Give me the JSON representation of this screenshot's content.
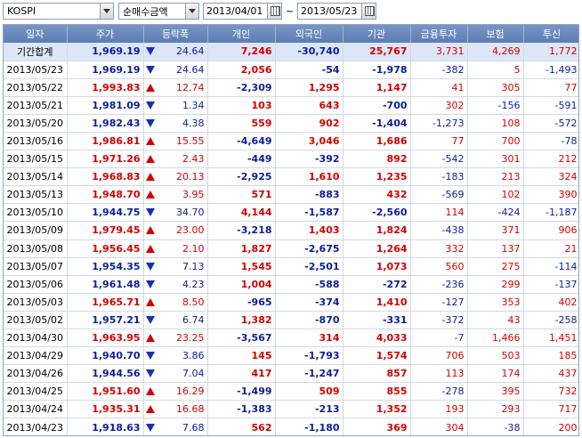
{
  "toolbar": {
    "market": "KOSPI",
    "metric": "순매수금액",
    "date_from": "2013/04/01",
    "date_sep": "~",
    "date_to": "2013/05/23"
  },
  "colors": {
    "up": "#d20000",
    "down": "#0a1e9a",
    "header": "#6a89bc"
  },
  "table": {
    "headers": [
      "일자",
      "주가",
      "등락폭",
      "개인",
      "외국인",
      "기관",
      "금융투자",
      "보험",
      "투신"
    ],
    "rows": [
      {
        "date": "기간합계",
        "price": "1,969.19",
        "dir": "down",
        "change": "24.64",
        "indiv": "7,246",
        "foreign": "-30,740",
        "inst": "25,767",
        "fin": "3,731",
        "ins": "4,269",
        "trust": "1,772"
      },
      {
        "date": "2013/05/23",
        "price": "1,969.19",
        "dir": "down",
        "change": "24.64",
        "indiv": "2,056",
        "foreign": "-54",
        "inst": "-1,978",
        "fin": "-382",
        "ins": "5",
        "trust": "-1,493"
      },
      {
        "date": "2013/05/22",
        "price": "1,993.83",
        "dir": "up",
        "change": "12.74",
        "indiv": "-2,309",
        "foreign": "1,295",
        "inst": "1,147",
        "fin": "41",
        "ins": "305",
        "trust": "77"
      },
      {
        "date": "2013/05/21",
        "price": "1,981.09",
        "dir": "down",
        "change": "1.34",
        "indiv": "103",
        "foreign": "643",
        "inst": "-700",
        "fin": "302",
        "ins": "-156",
        "trust": "-591"
      },
      {
        "date": "2013/05/20",
        "price": "1,982.43",
        "dir": "down",
        "change": "4.38",
        "indiv": "559",
        "foreign": "902",
        "inst": "-1,404",
        "fin": "-1,273",
        "ins": "108",
        "trust": "-572"
      },
      {
        "date": "2013/05/16",
        "price": "1,986.81",
        "dir": "up",
        "change": "15.55",
        "indiv": "-4,649",
        "foreign": "3,046",
        "inst": "1,686",
        "fin": "77",
        "ins": "700",
        "trust": "-78"
      },
      {
        "date": "2013/05/15",
        "price": "1,971.26",
        "dir": "up",
        "change": "2.43",
        "indiv": "-449",
        "foreign": "-392",
        "inst": "892",
        "fin": "-542",
        "ins": "301",
        "trust": "212"
      },
      {
        "date": "2013/05/14",
        "price": "1,968.83",
        "dir": "up",
        "change": "20.13",
        "indiv": "-2,925",
        "foreign": "1,610",
        "inst": "1,235",
        "fin": "-183",
        "ins": "213",
        "trust": "324"
      },
      {
        "date": "2013/05/13",
        "price": "1,948.70",
        "dir": "up",
        "change": "3.95",
        "indiv": "571",
        "foreign": "-883",
        "inst": "432",
        "fin": "-569",
        "ins": "102",
        "trust": "390"
      },
      {
        "date": "2013/05/10",
        "price": "1,944.75",
        "dir": "down",
        "change": "34.70",
        "indiv": "4,144",
        "foreign": "-1,587",
        "inst": "-2,560",
        "fin": "114",
        "ins": "-424",
        "trust": "-1,187"
      },
      {
        "date": "2013/05/09",
        "price": "1,979.45",
        "dir": "up",
        "change": "23.00",
        "indiv": "-3,218",
        "foreign": "1,403",
        "inst": "1,824",
        "fin": "-438",
        "ins": "371",
        "trust": "906"
      },
      {
        "date": "2013/05/08",
        "price": "1,956.45",
        "dir": "up",
        "change": "2.10",
        "indiv": "1,827",
        "foreign": "-2,675",
        "inst": "1,264",
        "fin": "332",
        "ins": "137",
        "trust": "21"
      },
      {
        "date": "2013/05/07",
        "price": "1,954.35",
        "dir": "down",
        "change": "7.13",
        "indiv": "1,545",
        "foreign": "-2,501",
        "inst": "1,073",
        "fin": "560",
        "ins": "275",
        "trust": "-114"
      },
      {
        "date": "2013/05/06",
        "price": "1,961.48",
        "dir": "down",
        "change": "4.23",
        "indiv": "1,004",
        "foreign": "-588",
        "inst": "-272",
        "fin": "-236",
        "ins": "299",
        "trust": "-137"
      },
      {
        "date": "2013/05/03",
        "price": "1,965.71",
        "dir": "up",
        "change": "8.50",
        "indiv": "-965",
        "foreign": "-374",
        "inst": "1,410",
        "fin": "-127",
        "ins": "353",
        "trust": "402"
      },
      {
        "date": "2013/05/02",
        "price": "1,957.21",
        "dir": "down",
        "change": "6.74",
        "indiv": "1,382",
        "foreign": "-870",
        "inst": "-331",
        "fin": "-372",
        "ins": "43",
        "trust": "-258"
      },
      {
        "date": "2013/04/30",
        "price": "1,963.95",
        "dir": "up",
        "change": "23.25",
        "indiv": "-3,567",
        "foreign": "314",
        "inst": "4,033",
        "fin": "-7",
        "ins": "1,466",
        "trust": "1,451"
      },
      {
        "date": "2013/04/29",
        "price": "1,940.70",
        "dir": "down",
        "change": "3.86",
        "indiv": "145",
        "foreign": "-1,793",
        "inst": "1,574",
        "fin": "706",
        "ins": "503",
        "trust": "185"
      },
      {
        "date": "2013/04/26",
        "price": "1,944.56",
        "dir": "down",
        "change": "7.04",
        "indiv": "417",
        "foreign": "-1,247",
        "inst": "857",
        "fin": "113",
        "ins": "174",
        "trust": "437"
      },
      {
        "date": "2013/04/25",
        "price": "1,951.60",
        "dir": "up",
        "change": "16.29",
        "indiv": "-1,499",
        "foreign": "509",
        "inst": "855",
        "fin": "-278",
        "ins": "395",
        "trust": "732"
      },
      {
        "date": "2013/04/24",
        "price": "1,935.31",
        "dir": "up",
        "change": "16.68",
        "indiv": "-1,383",
        "foreign": "-213",
        "inst": "1,352",
        "fin": "193",
        "ins": "293",
        "trust": "717"
      },
      {
        "date": "2013/04/23",
        "price": "1,918.63",
        "dir": "down",
        "change": "7.68",
        "indiv": "562",
        "foreign": "-1,180",
        "inst": "369",
        "fin": "304",
        "ins": "-38",
        "trust": "200"
      }
    ]
  }
}
